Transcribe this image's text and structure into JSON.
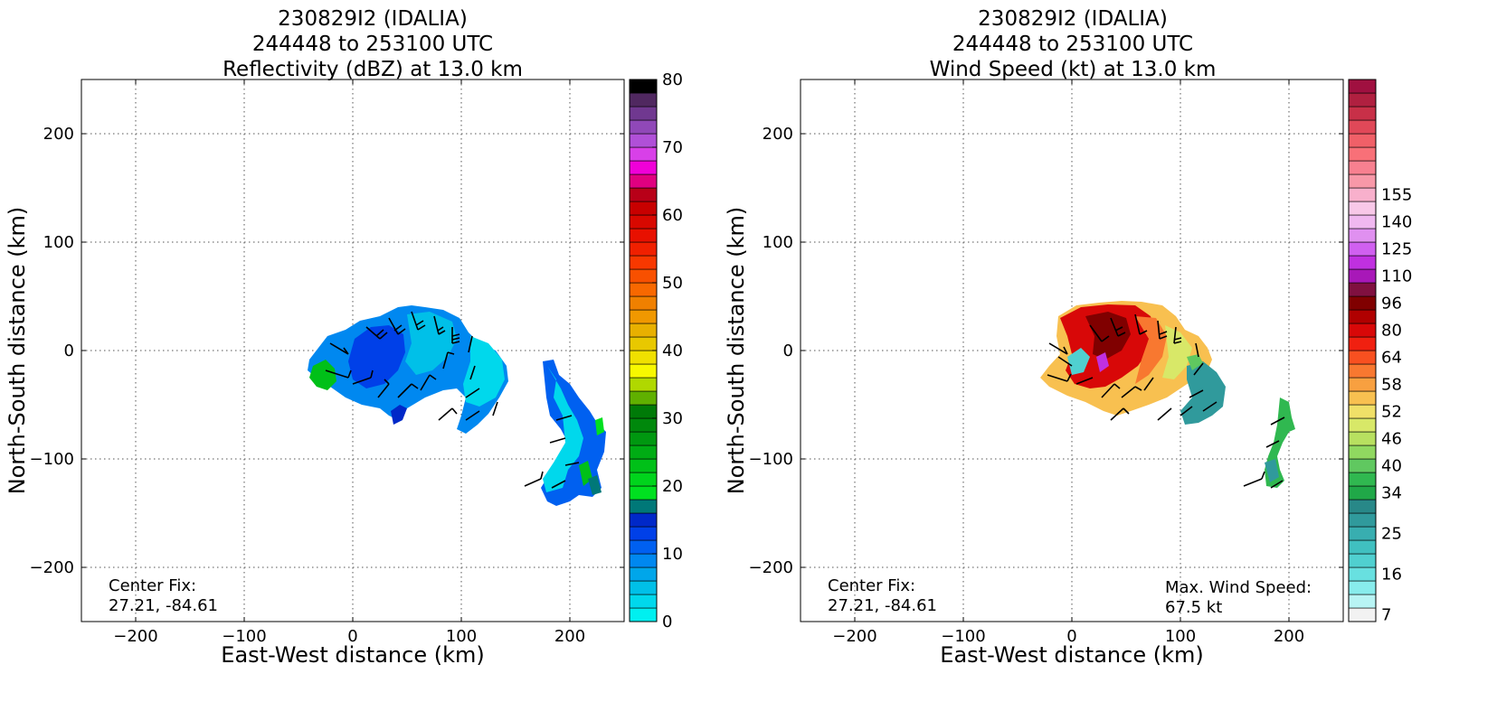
{
  "chart_data": [
    {
      "type": "heatmap",
      "title_lines": [
        "230829I2 (IDALIA)",
        "244448 to 253100 UTC",
        "Reflectivity (dBZ) at 13.0 km"
      ],
      "xlabel": "East-West distance (km)",
      "ylabel": "North-South distance (km)",
      "xlim": [
        -250,
        250
      ],
      "ylim": [
        -250,
        250
      ],
      "xticks": [
        -200,
        -100,
        0,
        100,
        200
      ],
      "yticks": [
        200,
        100,
        0,
        -100,
        -200
      ],
      "grid": true,
      "colorbar": {
        "min": 0,
        "max": 80,
        "step": 2.5,
        "tick_values": [
          0,
          10,
          20,
          30,
          40,
          50,
          60,
          70,
          80
        ],
        "tick_labels": [
          "0",
          "10",
          "20",
          "30",
          "40",
          "50",
          "60",
          "70",
          "80"
        ],
        "colors": [
          "#00f0f0",
          "#00d8ec",
          "#00c0e8",
          "#00a6ea",
          "#0088f0",
          "#0060f0",
          "#0040e8",
          "#0028c8",
          "#007878",
          "#00e020",
          "#00d41c",
          "#00c018",
          "#00ac14",
          "#009810",
          "#00880c",
          "#007a08",
          "#60b000",
          "#b0d800",
          "#f8f800",
          "#f0e000",
          "#e8c800",
          "#e8b000",
          "#f09800",
          "#f08000",
          "#f86800",
          "#f85000",
          "#f83800",
          "#f02000",
          "#e81000",
          "#d80800",
          "#c80000",
          "#b80018",
          "#e00080",
          "#f000d8",
          "#d840e8",
          "#b050d8",
          "#9048b8",
          "#703890",
          "#502860",
          "#000000"
        ]
      },
      "annotations": [
        "Center Fix:",
        "27.21, -84.61"
      ]
    },
    {
      "type": "heatmap",
      "title_lines": [
        "230829I2 (IDALIA)",
        "244448 to 253100 UTC",
        "Wind Speed (kt) at 13.0 km"
      ],
      "xlabel": "East-West distance (km)",
      "ylabel": "North-South distance (km)",
      "xlim": [
        -250,
        250
      ],
      "ylim": [
        -250,
        250
      ],
      "xticks": [
        -200,
        -100,
        0,
        100,
        200
      ],
      "yticks": [
        200,
        100,
        0,
        -100,
        -200
      ],
      "grid": true,
      "colorbar": {
        "tick_labels": [
          "7",
          "16",
          "25",
          "34",
          "40",
          "46",
          "52",
          "58",
          "64",
          "80",
          "96",
          "110",
          "125",
          "140",
          "155"
        ],
        "tick_bins": [
          0,
          3,
          6,
          9,
          11,
          13,
          15,
          17,
          19,
          21,
          23,
          25,
          27,
          29,
          31
        ],
        "colors": [
          "#f2f2f2",
          "#b8f4f4",
          "#88ecec",
          "#68e0e0",
          "#50d0d0",
          "#40c0c0",
          "#38aeb0",
          "#309a9c",
          "#288888",
          "#20a848",
          "#30b850",
          "#60c860",
          "#90d860",
          "#b8e060",
          "#d8e868",
          "#f0e068",
          "#f8c050",
          "#f8a040",
          "#f87830",
          "#f85020",
          "#f02010",
          "#d80808",
          "#b00000",
          "#800000",
          "#801040",
          "#a818b8",
          "#c030e0",
          "#d060f0",
          "#e090f0",
          "#f0b8f0",
          "#f8c8e8",
          "#f8b0cc",
          "#f898a8",
          "#f88090",
          "#f87078",
          "#f06068",
          "#e04858",
          "#c83048",
          "#b02040",
          "#a01040"
        ]
      },
      "annotations": [
        "Center Fix:",
        "27.21, -84.61"
      ],
      "max_wind_label": [
        "Max. Wind Speed:",
        "67.5 kt"
      ]
    }
  ]
}
